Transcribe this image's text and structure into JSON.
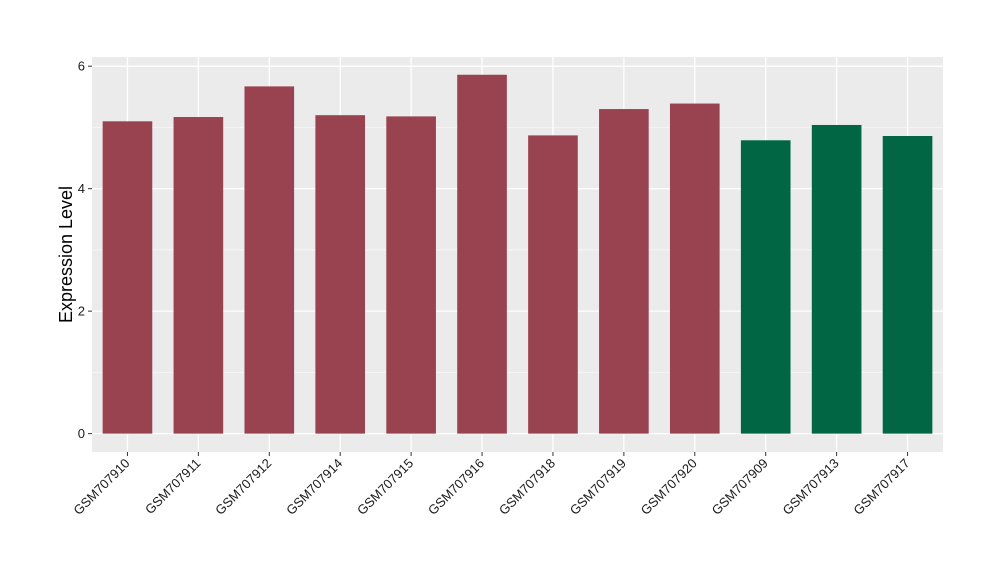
{
  "chart_data": {
    "type": "bar",
    "title": "",
    "xlabel": "",
    "ylabel": "Expression Level",
    "ylim": [
      -0.3,
      6.15
    ],
    "y_ticks": [
      0,
      2,
      4,
      6
    ],
    "grid": true,
    "categories": [
      "GSM707910",
      "GSM707911",
      "GSM707912",
      "GSM707914",
      "GSM707915",
      "GSM707916",
      "GSM707918",
      "GSM707919",
      "GSM707920",
      "GSM707909",
      "GSM707913",
      "GSM707917"
    ],
    "values": [
      5.1,
      5.17,
      5.67,
      5.2,
      5.18,
      5.86,
      4.87,
      5.3,
      5.39,
      4.79,
      5.04,
      4.86
    ],
    "bar_colors": [
      "#9a4350",
      "#9a4350",
      "#9a4350",
      "#9a4350",
      "#9a4350",
      "#9a4350",
      "#9a4350",
      "#9a4350",
      "#9a4350",
      "#006644",
      "#006644",
      "#006644"
    ],
    "colors": {
      "panel_background": "#ebebeb",
      "grid_major": "#ffffff",
      "grid_minor": "#f5f5f5"
    }
  }
}
